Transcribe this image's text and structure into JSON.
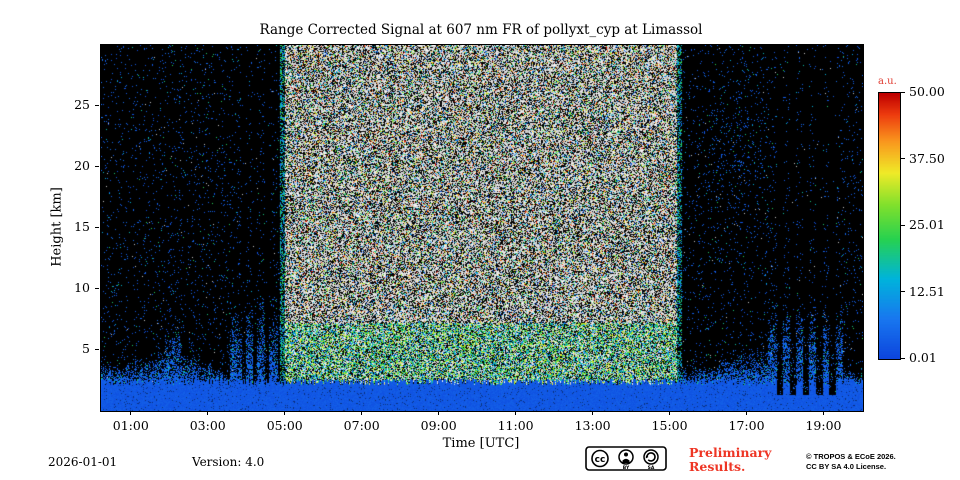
{
  "title": "Range Corrected Signal at 607 nm FR of pollyxt_cyp at Limassol",
  "axes": {
    "xlabel": "Time [UTC]",
    "ylabel": "Height [km]"
  },
  "colorbar": {
    "unit": "a.u.",
    "tick_labels": [
      "50.00",
      "37.50",
      "25.01",
      "12.51",
      "0.01"
    ]
  },
  "footer": {
    "date": "2026-01-01",
    "version": "Version: 4.0",
    "preliminary": "Preliminary Results.",
    "license_badge": "CC BY-SA",
    "copyright_line1": "© TROPOS & ECoE 2026.",
    "copyright_line2": "CC BY SA 4.0 License."
  },
  "chart_data": {
    "type": "heatmap",
    "title": "Range Corrected Signal at 607 nm FR of pollyxt_cyp at Limassol",
    "xlabel": "Time [UTC]",
    "ylabel": "Height [km]",
    "x_tick_labels": [
      "01:00",
      "03:00",
      "05:00",
      "07:00",
      "09:00",
      "11:00",
      "13:00",
      "15:00",
      "17:00",
      "19:00"
    ],
    "x_tick_hours": [
      1,
      3,
      5,
      7,
      9,
      11,
      13,
      15,
      17,
      19
    ],
    "x_range_hours": [
      0.2,
      20.0
    ],
    "y_tick_km": [
      5,
      10,
      15,
      20,
      25
    ],
    "y_range_km": [
      0,
      30
    ],
    "colorbar": {
      "label": "a.u.",
      "ticks": [
        50.0,
        37.5,
        25.01,
        12.51,
        0.01
      ],
      "range": [
        0.01,
        50.0
      ],
      "colormap": "jet"
    },
    "features": {
      "description": "Noisy raman lidar range-corrected-signal quicklook, 607 nm far-range channel; speckle noise heatmap.",
      "daylight_saturated_background_hours": [
        4.85,
        15.3
      ],
      "near_surface_saturated_blue_layer_top_km": 2.4,
      "nighttime_aerosol_speckle_layer_top_km": 3.5,
      "elevated_layer_episodes_hours": [
        [
          1.9,
          2.3
        ],
        [
          3.6,
          4.75
        ],
        [
          17.6,
          19.45
        ]
      ],
      "dark_gap_stripe_hours": [
        [
          3.75,
          4.7
        ],
        [
          17.6,
          19.45
        ]
      ],
      "high_altitude_blue_patch": {
        "hours": [
          15.45,
          17.85
        ],
        "km": [
          15,
          29
        ]
      }
    }
  }
}
